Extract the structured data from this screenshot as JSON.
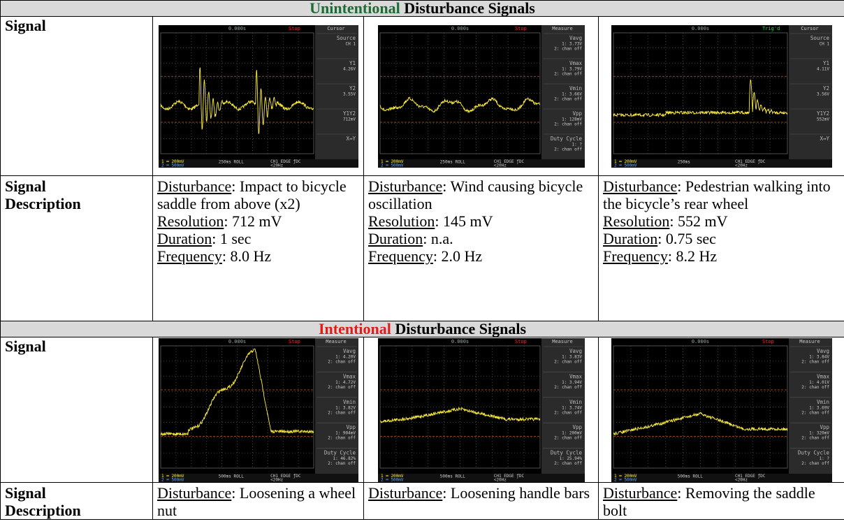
{
  "sections": [
    {
      "title": {
        "accent": "Unintentional",
        "rest": " Disturbance Signals"
      },
      "signal_label": "Signal",
      "desc_label": "Signal Description",
      "scopes": [
        {
          "time": "0.000s",
          "status": "Stop",
          "status_color": "#ff2a2a",
          "menu": "Cursor",
          "side": [
            {
              "label": "Source",
              "lines": [
                "CH 1"
              ]
            },
            {
              "label": "Y1",
              "lines": [
                "4.26V"
              ]
            },
            {
              "label": "Y2",
              "lines": [
                "3.55V"
              ]
            },
            {
              "label": "Y1Y2",
              "lines": [
                "712mV"
              ]
            },
            {
              "label": "X↔Y",
              "lines": []
            }
          ],
          "bottom": {
            "ch1": "1 ═ 200mV",
            "ch2": "2 ═ 500mV",
            "timebase": "250ms ROLL",
            "trigger": "CH1 EDGE ƒDC",
            "freq": "<20Hz"
          }
        },
        {
          "time": "0.000s",
          "status": "Stop",
          "status_color": "#ff2a2a",
          "menu": "Measure",
          "side": [
            {
              "label": "Vavg",
              "lines": [
                "1: 3.73V",
                "2: chan off"
              ]
            },
            {
              "label": "Vmax",
              "lines": [
                "1: 3.79V",
                "2: chan off"
              ]
            },
            {
              "label": "Vmin",
              "lines": [
                "1: 3.66V",
                "2: chan off"
              ]
            },
            {
              "label": "Vpp",
              "lines": [
                "1: 128mV",
                "2: chan off"
              ]
            },
            {
              "label": "Duty Cycle",
              "lines": [
                "1: ?",
                "2: chan off"
              ]
            }
          ],
          "bottom": {
            "ch1": "1 ═ 200mV",
            "ch2": "2 ═ 500mV",
            "timebase": "250ms ROLL",
            "trigger": "CH1 EDGE ƒDC",
            "freq": "<20Hz"
          }
        },
        {
          "time": "0.000s",
          "status": "Trig'd",
          "status_color": "#39d353",
          "menu": "Cursor",
          "side": [
            {
              "label": "Source",
              "lines": [
                "CH 1"
              ]
            },
            {
              "label": "Y1",
              "lines": [
                "4.11V"
              ]
            },
            {
              "label": "Y2",
              "lines": [
                "3.56V"
              ]
            },
            {
              "label": "Y1Y2",
              "lines": [
                "552mV"
              ]
            },
            {
              "label": "X↔Y",
              "lines": []
            }
          ],
          "bottom": {
            "ch1": "1 ═ 200mV",
            "ch2": "2 ═ 500mV",
            "timebase": "250ms",
            "trigger": "CH1 EDGE ƒDC",
            "freq": "<20Hz"
          }
        }
      ],
      "descriptions": [
        [
          {
            "label": "Disturbance",
            "text": ": Impact to bicycle saddle from above (x2)"
          },
          {
            "label": "Resolution",
            "text": ": 712 mV"
          },
          {
            "label": "Duration",
            "text": ": 1 sec"
          },
          {
            "label": "Frequency",
            "text": ": 8.0 Hz"
          }
        ],
        [
          {
            "label": "Disturbance",
            "text": ": Wind causing bicycle oscillation"
          },
          {
            "label": "Resolution",
            "text": ": 145 mV"
          },
          {
            "label": "Duration",
            "text": ": n.a."
          },
          {
            "label": "Frequency",
            "text": ": 2.0 Hz"
          }
        ],
        [
          {
            "label": "Disturbance",
            "text": ": Pedestrian walking into the bicycle’s rear wheel"
          },
          {
            "label": "Resolution",
            "text": ": 552 mV"
          },
          {
            "label": "Duration",
            "text": ": 0.75 sec"
          },
          {
            "label": "Frequency",
            "text": ": 8.2 Hz"
          }
        ]
      ]
    },
    {
      "title": {
        "accent": "Intentional",
        "rest": " Disturbance Signals"
      },
      "signal_label": "Signal",
      "desc_label": "Signal Description",
      "scopes": [
        {
          "time": "0.000s",
          "status": "Stop",
          "status_color": "#ff2a2a",
          "menu": "Measure",
          "side": [
            {
              "label": "Vavg",
              "lines": [
                "1: 4.20V",
                "2: chan off"
              ]
            },
            {
              "label": "Vmax",
              "lines": [
                "1: 4.72V",
                "2: chan off"
              ]
            },
            {
              "label": "Vmin",
              "lines": [
                "1: 3.82V",
                "2: chan off"
              ]
            },
            {
              "label": "Vpp",
              "lines": [
                "1: 904mV",
                "2: chan off"
              ]
            },
            {
              "label": "Duty Cycle",
              "lines": [
                "1: 46.82%",
                "2: chan off"
              ]
            }
          ],
          "bottom": {
            "ch1": "1 ═ 200mV",
            "ch2": "2 ═ 500mV",
            "timebase": "500ms ROLL",
            "trigger": "CH1 EDGE ƒDC",
            "freq": "<20Hz"
          }
        },
        {
          "time": "0.000s",
          "status": "Stop",
          "status_color": "#ff2a2a",
          "menu": "Measure",
          "side": [
            {
              "label": "Vavg",
              "lines": [
                "1: 3.83V",
                "2: chan off"
              ]
            },
            {
              "label": "Vmax",
              "lines": [
                "1: 3.94V",
                "2: chan off"
              ]
            },
            {
              "label": "Vmin",
              "lines": [
                "1: 3.74V",
                "2: chan off"
              ]
            },
            {
              "label": "Vpp",
              "lines": [
                "1: 200mV",
                "2: chan off"
              ]
            },
            {
              "label": "Duty Cycle",
              "lines": [
                "1: 25.94%",
                "2: chan off"
              ]
            }
          ],
          "bottom": {
            "ch1": "1 ═ 200mV",
            "ch2": "2 ═ 500mV",
            "timebase": "500ms ROLL",
            "trigger": "CH1 EDGE ƒDC",
            "freq": "<20Hz"
          }
        },
        {
          "time": "0.000s",
          "status": "Stop",
          "status_color": "#ff2a2a",
          "menu": "Measure",
          "side": [
            {
              "label": "Vavg",
              "lines": [
                "1: 3.84V",
                "2: chan off"
              ]
            },
            {
              "label": "Vmax",
              "lines": [
                "1: 4.01V",
                "2: chan off"
              ]
            },
            {
              "label": "Vmin",
              "lines": [
                "1: 3.69V",
                "2: chan off"
              ]
            },
            {
              "label": "Vpp",
              "lines": [
                "1: 320mV",
                "2: chan off"
              ]
            },
            {
              "label": "Duty Cycle",
              "lines": [
                "1: ?",
                "2: chan off"
              ]
            }
          ],
          "bottom": {
            "ch1": "1 ═ 200mV",
            "ch2": "2 ═ 500mV",
            "timebase": "500ms ROLL",
            "trigger": "CH1 EDGE ƒDC",
            "freq": "<20Hz"
          }
        }
      ],
      "descriptions": [
        [
          {
            "label": "Disturbance",
            "text": ": Loosening a wheel nut"
          }
        ],
        [
          {
            "label": "Disturbance",
            "text": ": Loosening handle bars"
          }
        ],
        [
          {
            "label": "Disturbance",
            "text": ": Removing the saddle bolt"
          }
        ]
      ]
    }
  ]
}
